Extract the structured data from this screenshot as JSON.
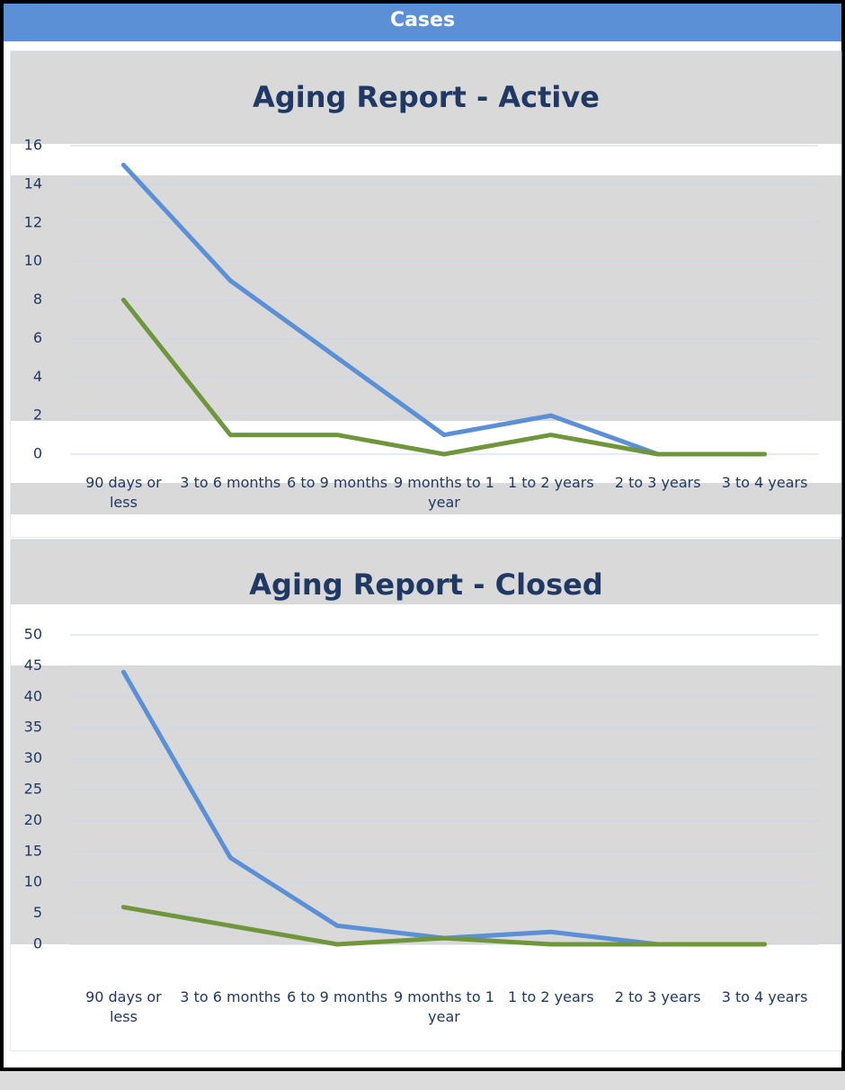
{
  "header": {
    "title": "Cases"
  },
  "chart_data": [
    {
      "type": "line",
      "title": "Aging Report - Active",
      "categories": [
        "90 days or less",
        "3 to 6 months",
        "6 to 9 months",
        "9 months to 1 year",
        "1 to 2 years",
        "2 to 3 years",
        "3 to 4 years"
      ],
      "series": [
        {
          "color": "#5b8fd6",
          "values": [
            15,
            9,
            5,
            1,
            2,
            0,
            0
          ]
        },
        {
          "color": "#70963c",
          "values": [
            8,
            1,
            1,
            0,
            1,
            0,
            0
          ]
        }
      ],
      "ylim": [
        0,
        16
      ],
      "yticks": [
        0,
        2,
        4,
        6,
        8,
        10,
        12,
        14,
        16
      ],
      "grid": true
    },
    {
      "type": "line",
      "title": "Aging Report - Closed",
      "categories": [
        "90 days or less",
        "3 to 6 months",
        "6 to 9 months",
        "9 months to 1 year",
        "1 to 2 years",
        "2 to 3 years",
        "3 to 4 years"
      ],
      "series": [
        {
          "color": "#5b8fd6",
          "values": [
            44,
            14,
            3,
            1,
            2,
            0,
            0
          ]
        },
        {
          "color": "#70963c",
          "values": [
            6,
            3,
            0,
            1,
            0,
            0,
            0
          ]
        }
      ],
      "ylim": [
        0,
        50
      ],
      "yticks": [
        0,
        5,
        10,
        15,
        20,
        25,
        30,
        35,
        40,
        45,
        50
      ],
      "grid": true
    }
  ]
}
